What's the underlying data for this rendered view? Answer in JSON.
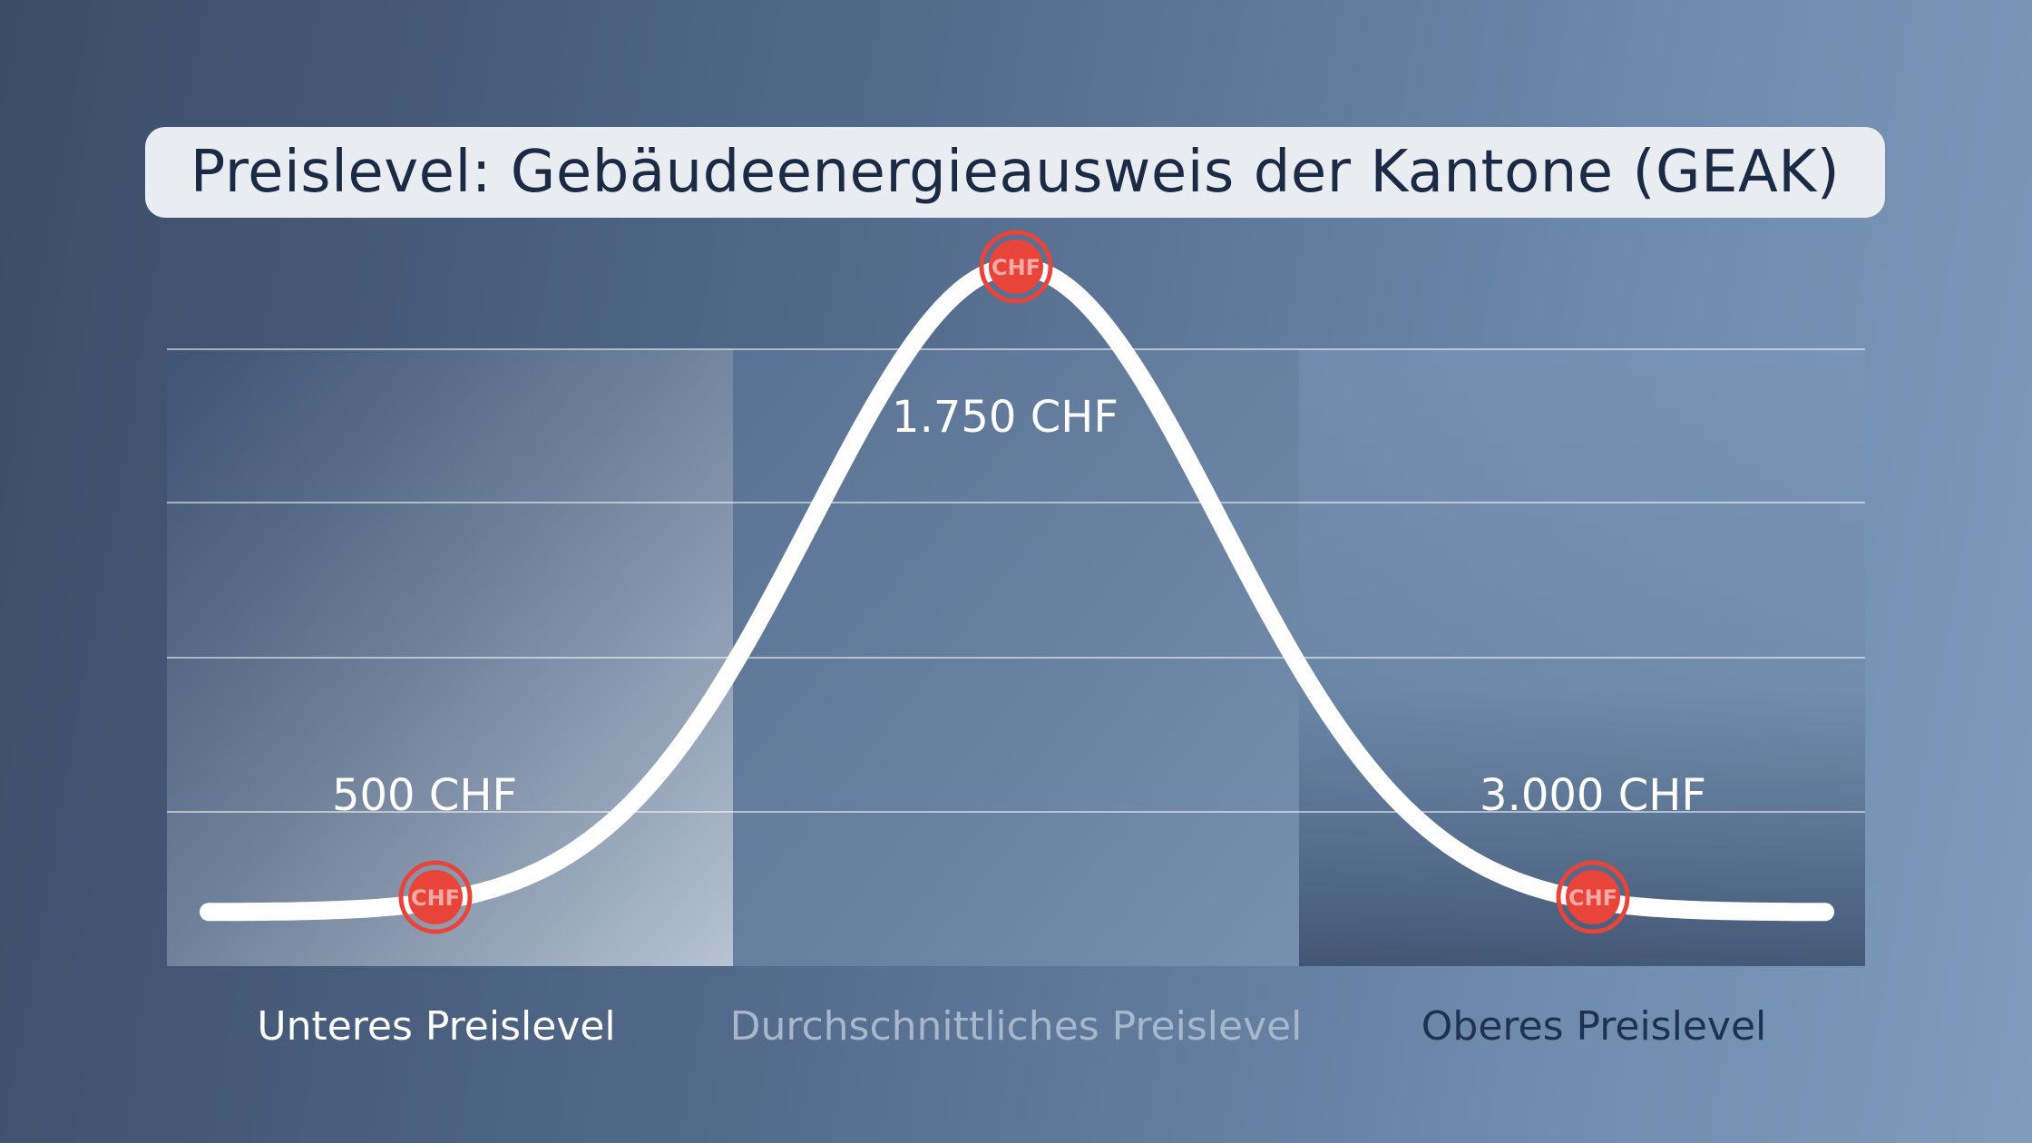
{
  "title": "Preislevel: Gebäudeenergieausweis der Kantone (GEAK)",
  "chart_data": {
    "type": "line",
    "categories": [
      "Unteres Preislevel",
      "Durchschnittliches Preislevel",
      "Oberes Preislevel"
    ],
    "points": [
      {
        "label": "500 CHF",
        "value": 500,
        "marker": "CHF",
        "category": "Unteres Preislevel"
      },
      {
        "label": "1.750 CHF",
        "value": 1750,
        "marker": "CHF",
        "category": "Durchschnittliches Preislevel"
      },
      {
        "label": "3.000 CHF",
        "value": 3000,
        "marker": "CHF",
        "category": "Oberes Preislevel"
      }
    ],
    "grid": true,
    "legend": "none"
  },
  "colors": {
    "curve": "#ffffff",
    "marker": "#e8443a",
    "title_text": "#1b2a45",
    "category_lower": "#ffffff",
    "category_middle": "#a7b7cc",
    "category_upper": "#1f3150"
  }
}
